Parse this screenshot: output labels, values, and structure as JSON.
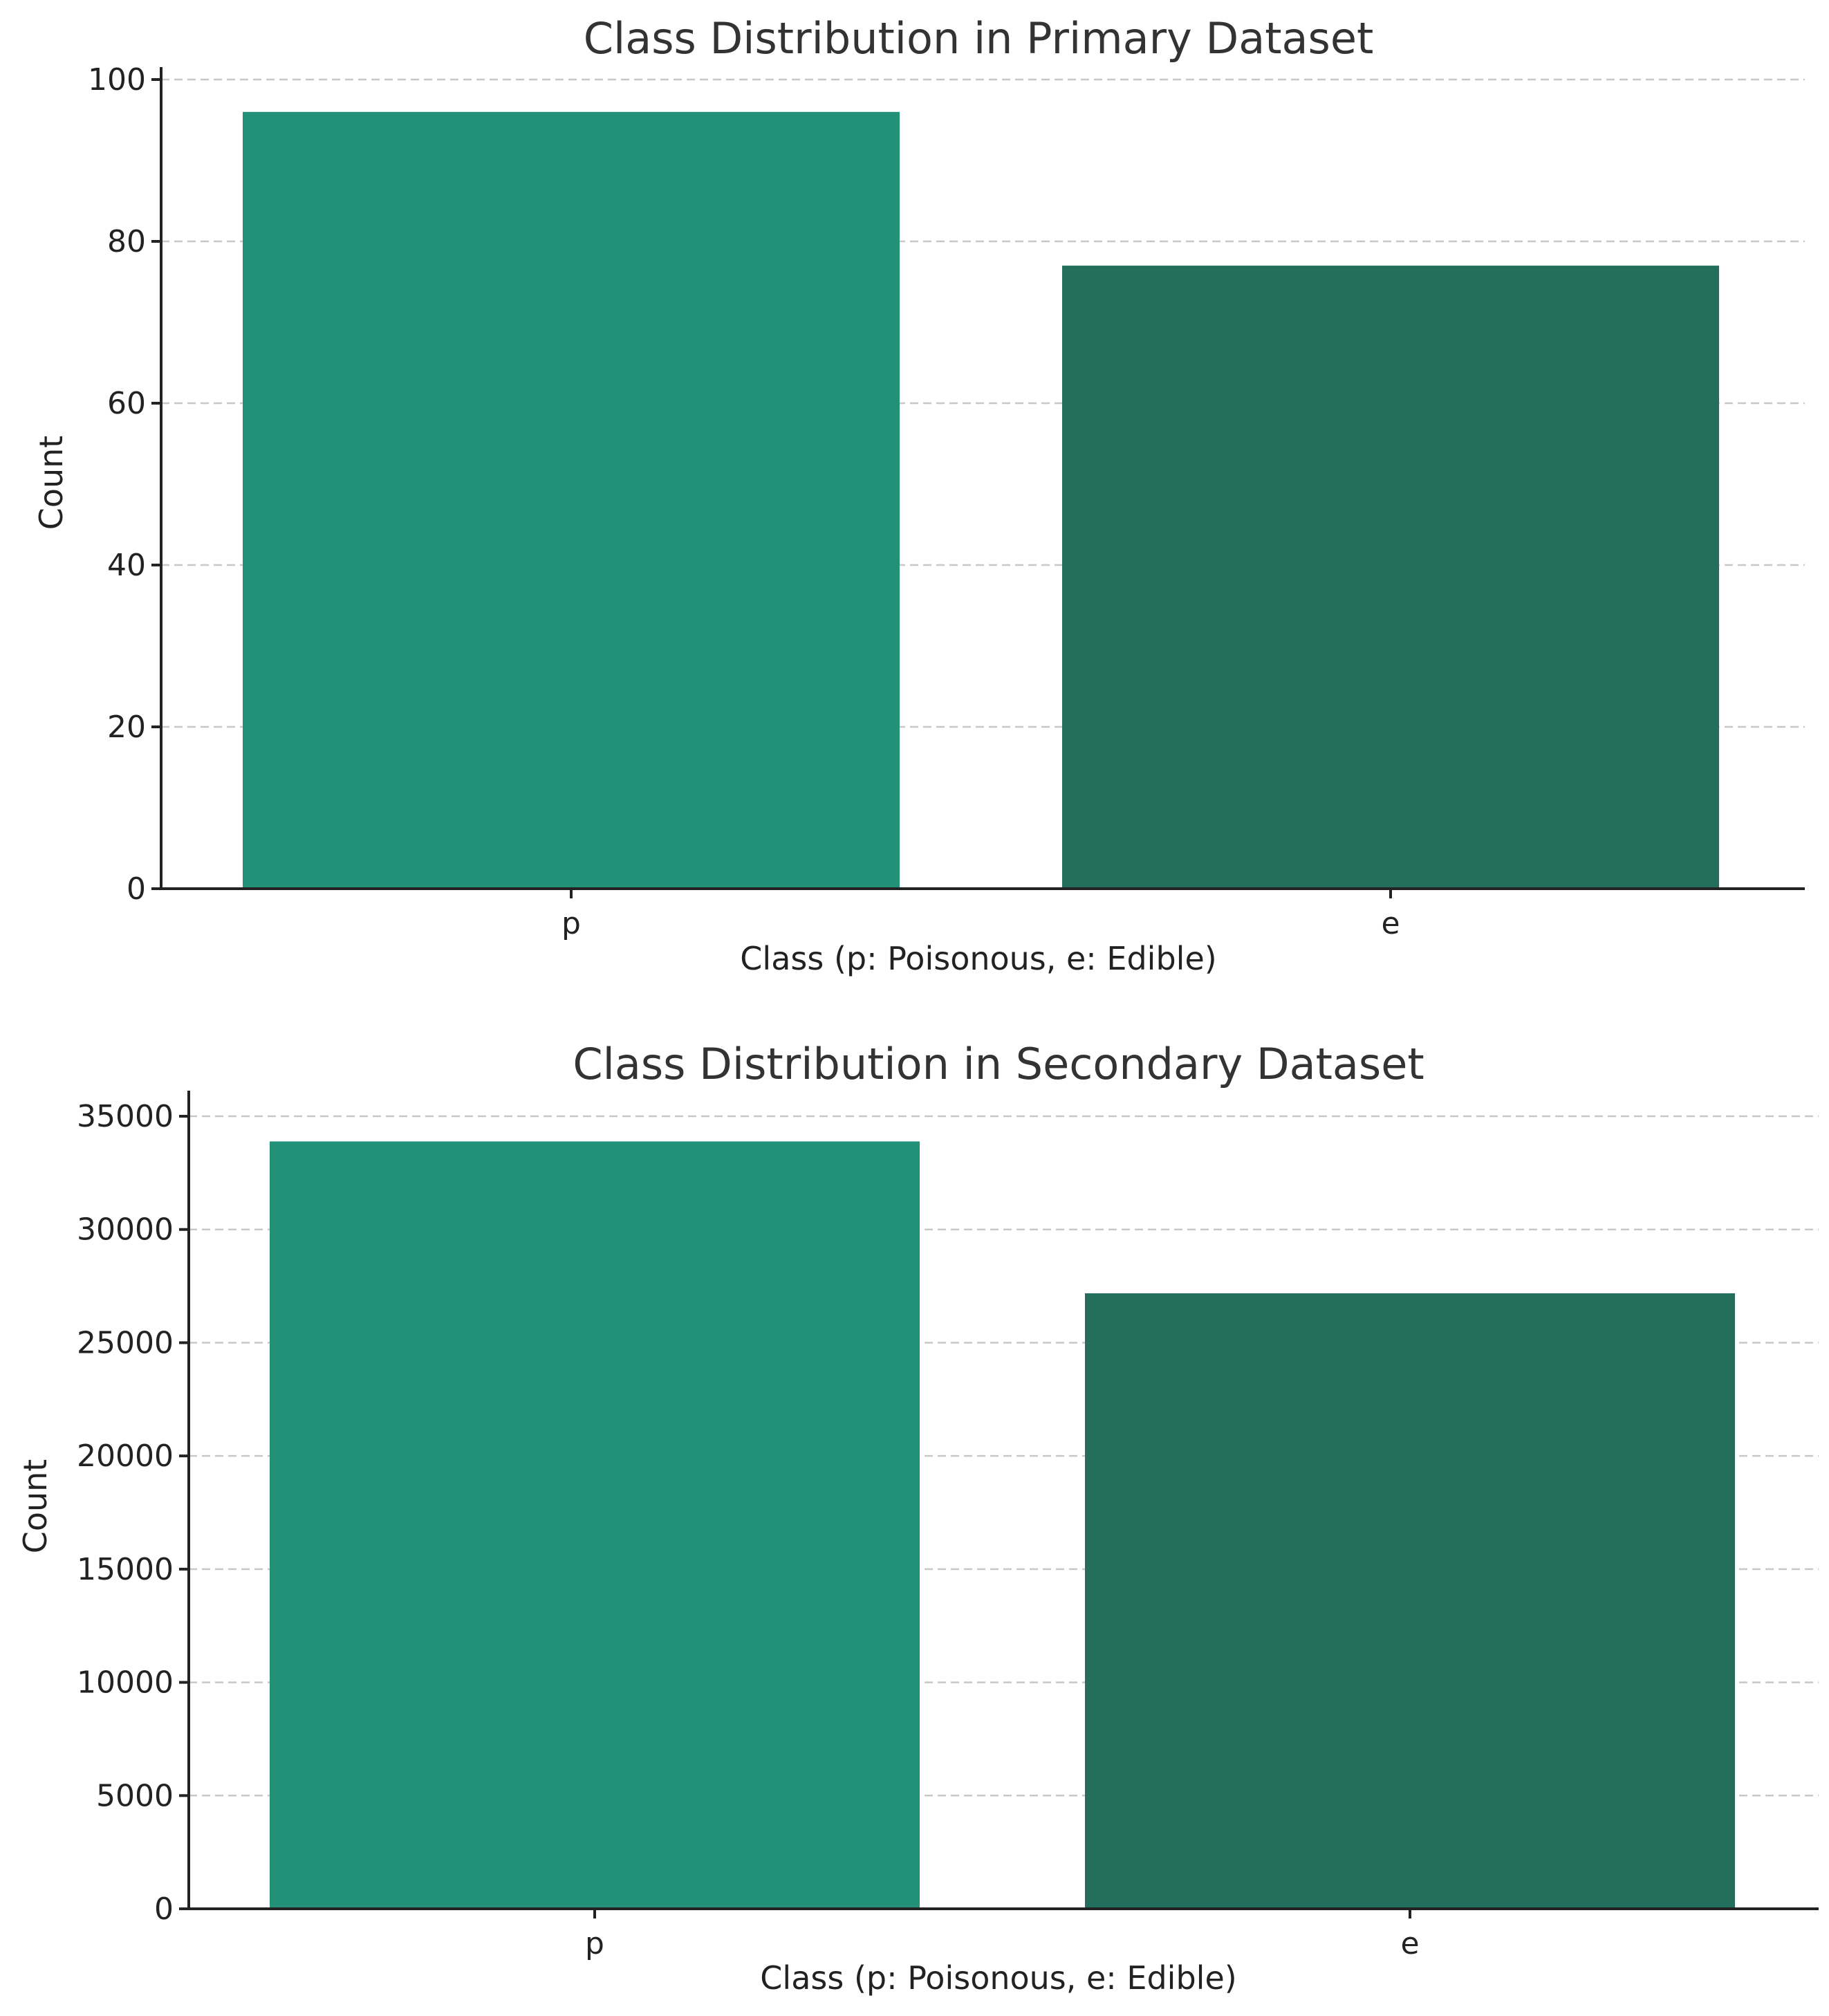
{
  "chart_data": [
    {
      "type": "bar",
      "title": "Class Distribution in Primary Dataset",
      "xlabel": "Class (p: Poisonous, e: Edible)",
      "ylabel": "Count",
      "categories": [
        "p",
        "e"
      ],
      "values": [
        96,
        77
      ],
      "ylim": [
        0,
        100
      ],
      "yticks": [
        0,
        20,
        40,
        60,
        80,
        100
      ],
      "colors": [
        "#239177",
        "#236e5d"
      ],
      "grid": true
    },
    {
      "type": "bar",
      "title": "Class Distribution in Secondary Dataset",
      "xlabel": "Class (p: Poisonous, e: Edible)",
      "ylabel": "Count",
      "categories": [
        "p",
        "e"
      ],
      "values": [
        33888,
        27181
      ],
      "ylim": [
        0,
        35581
      ],
      "yticks": [
        0,
        5000,
        10000,
        15000,
        20000,
        25000,
        30000,
        35000
      ],
      "colors": [
        "#239177",
        "#236e5d"
      ],
      "grid": true
    }
  ]
}
